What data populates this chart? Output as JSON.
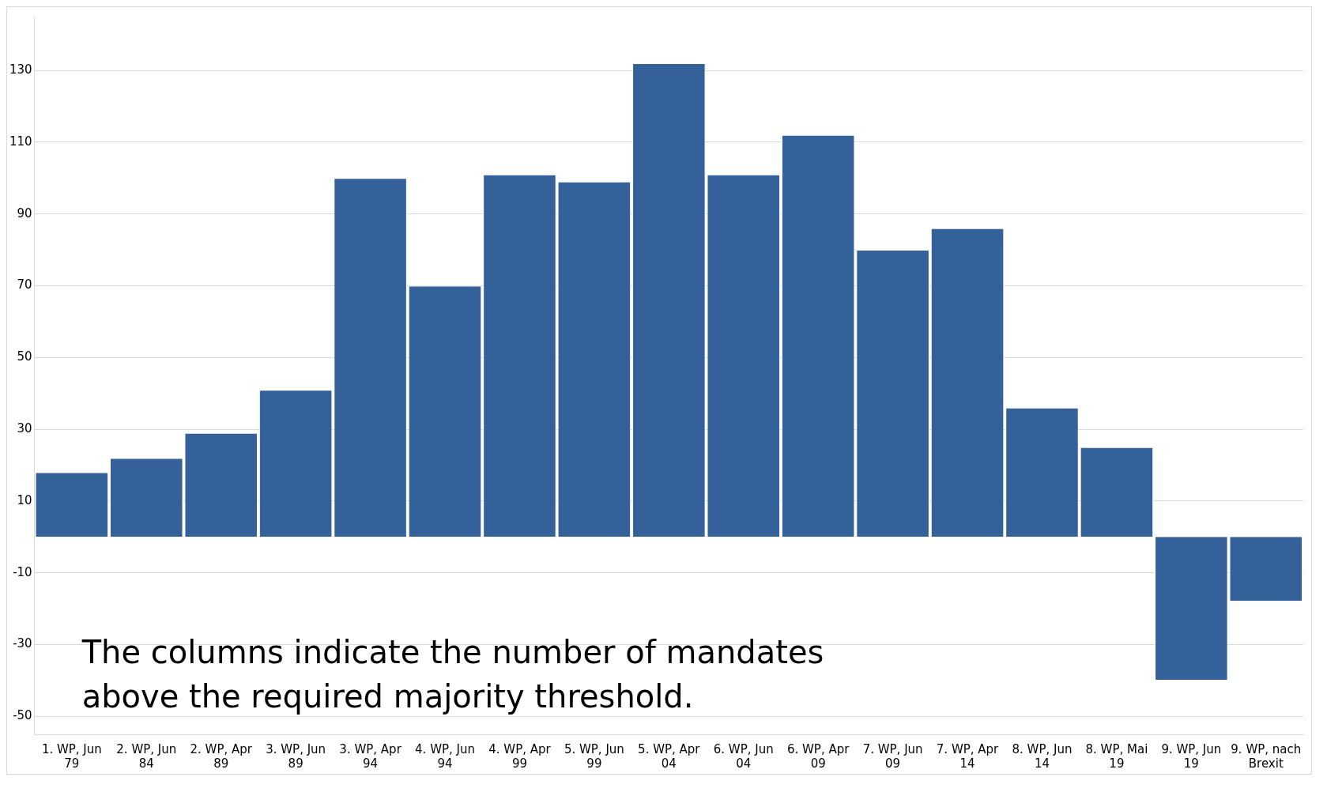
{
  "chart_data": {
    "type": "bar",
    "categories": [
      "1. WP, Jun 79",
      "2. WP, Jun 84",
      "2. WP, Apr 89",
      "3. WP, Jun 89",
      "3. WP, Apr 94",
      "4. WP, Jun 94",
      "4. WP, Apr 99",
      "5. WP, Jun 99",
      "5. WP, Apr 04",
      "6. WP, Jun 04",
      "6. WP, Apr 09",
      "7. WP, Jun 09",
      "7. WP, Apr 14",
      "8. WP, Jun 14",
      "8. WP, Mai 19",
      "9. WP, Jun 19",
      "9. WP, nach Brexit"
    ],
    "values": [
      18,
      22,
      29,
      41,
      100,
      70,
      101,
      99,
      132,
      101,
      112,
      80,
      86,
      36,
      25,
      -40,
      -18
    ],
    "color": "#35619a",
    "ylim": [
      -55,
      145
    ],
    "yticks": [
      -50,
      -30,
      -10,
      10,
      30,
      50,
      70,
      90,
      110,
      130
    ],
    "grid": "y",
    "legend": false,
    "annotations": [
      "The columns indicate the number of mandates above the required majority threshold."
    ]
  }
}
